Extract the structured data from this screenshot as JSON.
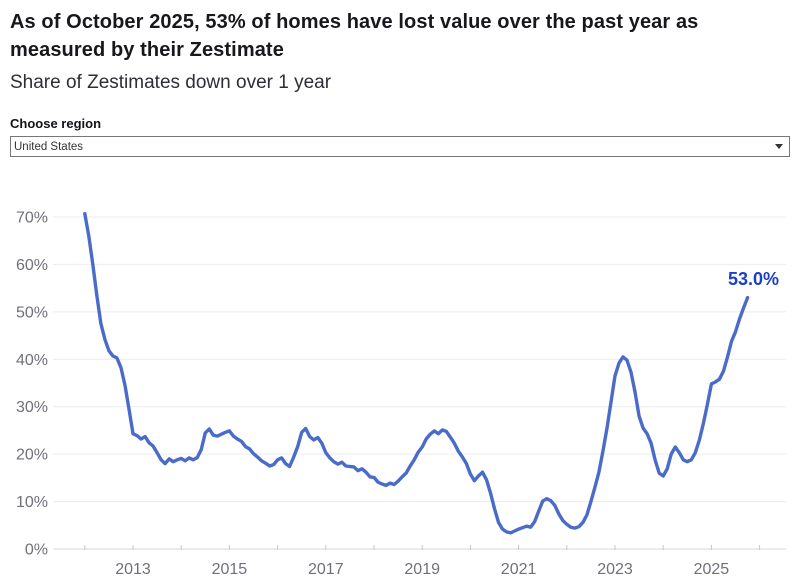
{
  "header": {
    "title": "As of October 2025, 53% of homes have lost value over the past year as measured by their Zestimate",
    "subtitle": "Share of Zestimates down over 1 year"
  },
  "region_selector": {
    "label": "Choose region",
    "selected_option": "United States",
    "dropdown_arrow_icon": "caret-down"
  },
  "colors": {
    "line": "#4a6bc8",
    "end_label": "#1d40c4",
    "grid": "#ececf0",
    "axis_line": "#d8d8dd",
    "tick": "#c6c6cc",
    "axis_text": "#70707a",
    "title_text": "#17171c",
    "subtitle_text": "#2e2e36"
  },
  "chart_data": {
    "type": "line",
    "title": "Share of Zestimates down over 1 year",
    "unit": "%",
    "start_month": "2012-01",
    "end_month": "2025-10",
    "frequency": "monthly",
    "end_label": "53.0%",
    "end_value": 53.0,
    "ylim": [
      0,
      73
    ],
    "y_ticks": [
      0,
      10,
      20,
      30,
      40,
      50,
      60,
      70
    ],
    "x_tick_years": [
      2012,
      2013,
      2014,
      2015,
      2016,
      2017,
      2018,
      2019,
      2020,
      2021,
      2022,
      2023,
      2024,
      2025,
      2026
    ],
    "x_labeled_years": [
      2013,
      2015,
      2017,
      2019,
      2021,
      2023,
      2025
    ],
    "grid": true,
    "legend": "none",
    "values": [
      70.7,
      66.0,
      60.0,
      53.5,
      47.5,
      44.2,
      41.8,
      40.7,
      40.3,
      38.2,
      34.5,
      29.5,
      24.3,
      23.9,
      23.2,
      23.7,
      22.4,
      21.7,
      20.3,
      18.8,
      18.0,
      19.0,
      18.4,
      18.8,
      19.1,
      18.6,
      19.2,
      18.8,
      19.3,
      21.0,
      24.5,
      25.3,
      24.0,
      23.8,
      24.2,
      24.6,
      24.9,
      23.8,
      23.2,
      22.7,
      21.6,
      21.1,
      20.1,
      19.4,
      18.6,
      18.1,
      17.5,
      17.8,
      18.8,
      19.2,
      18.0,
      17.4,
      19.4,
      21.6,
      24.6,
      25.4,
      23.7,
      23.0,
      23.5,
      22.3,
      20.3,
      19.2,
      18.4,
      17.9,
      18.3,
      17.5,
      17.4,
      17.3,
      16.5,
      16.9,
      16.2,
      15.2,
      15.1,
      14.1,
      13.7,
      13.4,
      13.9,
      13.6,
      14.3,
      15.2,
      16.0,
      17.5,
      18.8,
      20.4,
      21.5,
      23.2,
      24.2,
      24.9,
      24.3,
      25.1,
      24.8,
      23.6,
      22.3,
      20.6,
      19.4,
      18.0,
      15.8,
      14.4,
      15.4,
      16.2,
      14.6,
      11.8,
      8.5,
      5.6,
      4.2,
      3.6,
      3.4,
      3.8,
      4.2,
      4.5,
      4.8,
      4.6,
      5.8,
      8.0,
      10.1,
      10.6,
      10.2,
      9.2,
      7.4,
      6.0,
      5.2,
      4.6,
      4.4,
      4.7,
      5.6,
      7.2,
      10.0,
      13.0,
      16.2,
      20.7,
      25.5,
      31.0,
      36.5,
      39.2,
      40.5,
      39.8,
      37.2,
      33.0,
      28.0,
      25.5,
      24.3,
      22.3,
      18.7,
      16.0,
      15.4,
      16.9,
      20.0,
      21.5,
      20.3,
      18.8,
      18.4,
      18.8,
      20.3,
      23.0,
      26.5,
      30.5,
      34.8,
      35.2,
      35.8,
      37.5,
      40.5,
      43.8,
      45.8,
      48.5,
      50.8,
      53.0
    ]
  }
}
